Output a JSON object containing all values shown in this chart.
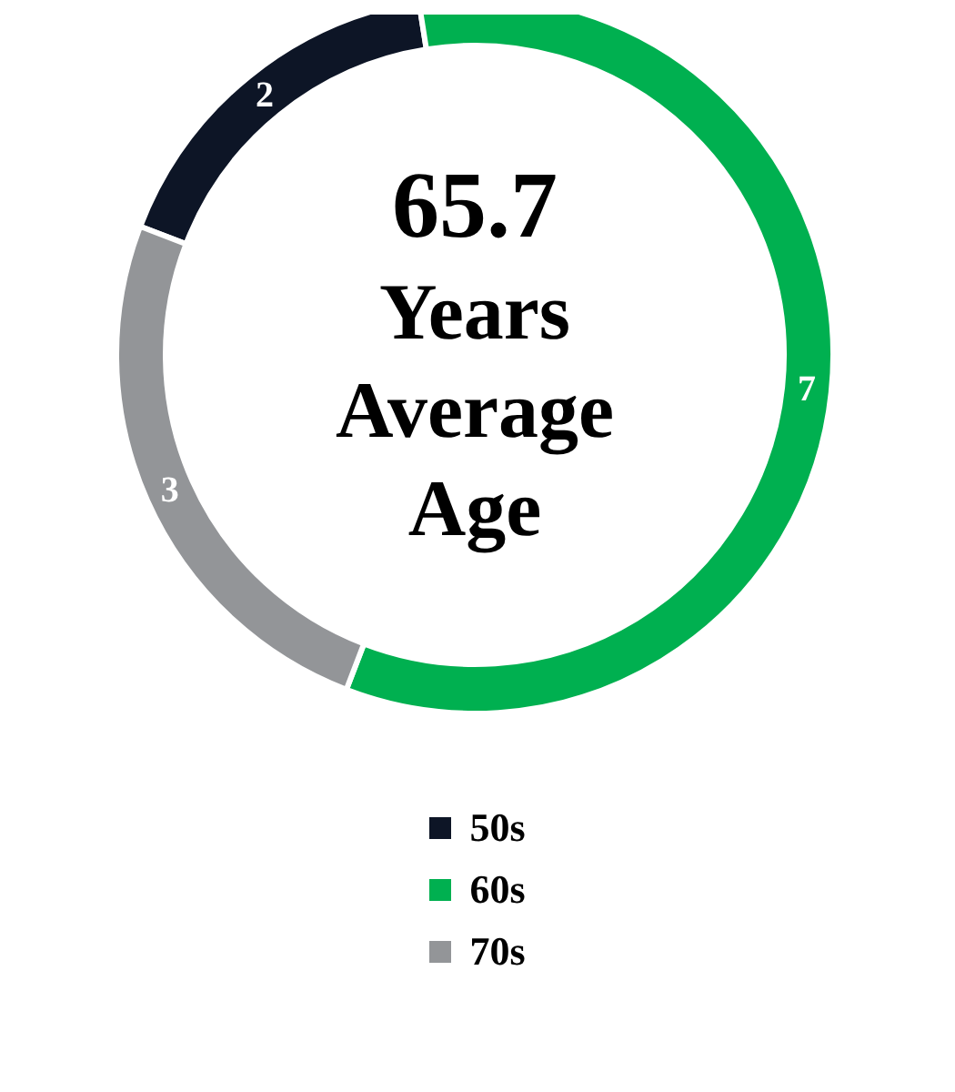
{
  "chart_data": {
    "type": "donut",
    "categories": [
      "50s",
      "60s",
      "70s"
    ],
    "values": [
      2,
      7,
      3
    ],
    "colors": [
      "#0d1526",
      "#00b050",
      "#939598"
    ],
    "data_labels": true,
    "legend": "bottom",
    "annotations": [
      "65.7",
      "Years",
      "Average",
      "Age"
    ]
  }
}
